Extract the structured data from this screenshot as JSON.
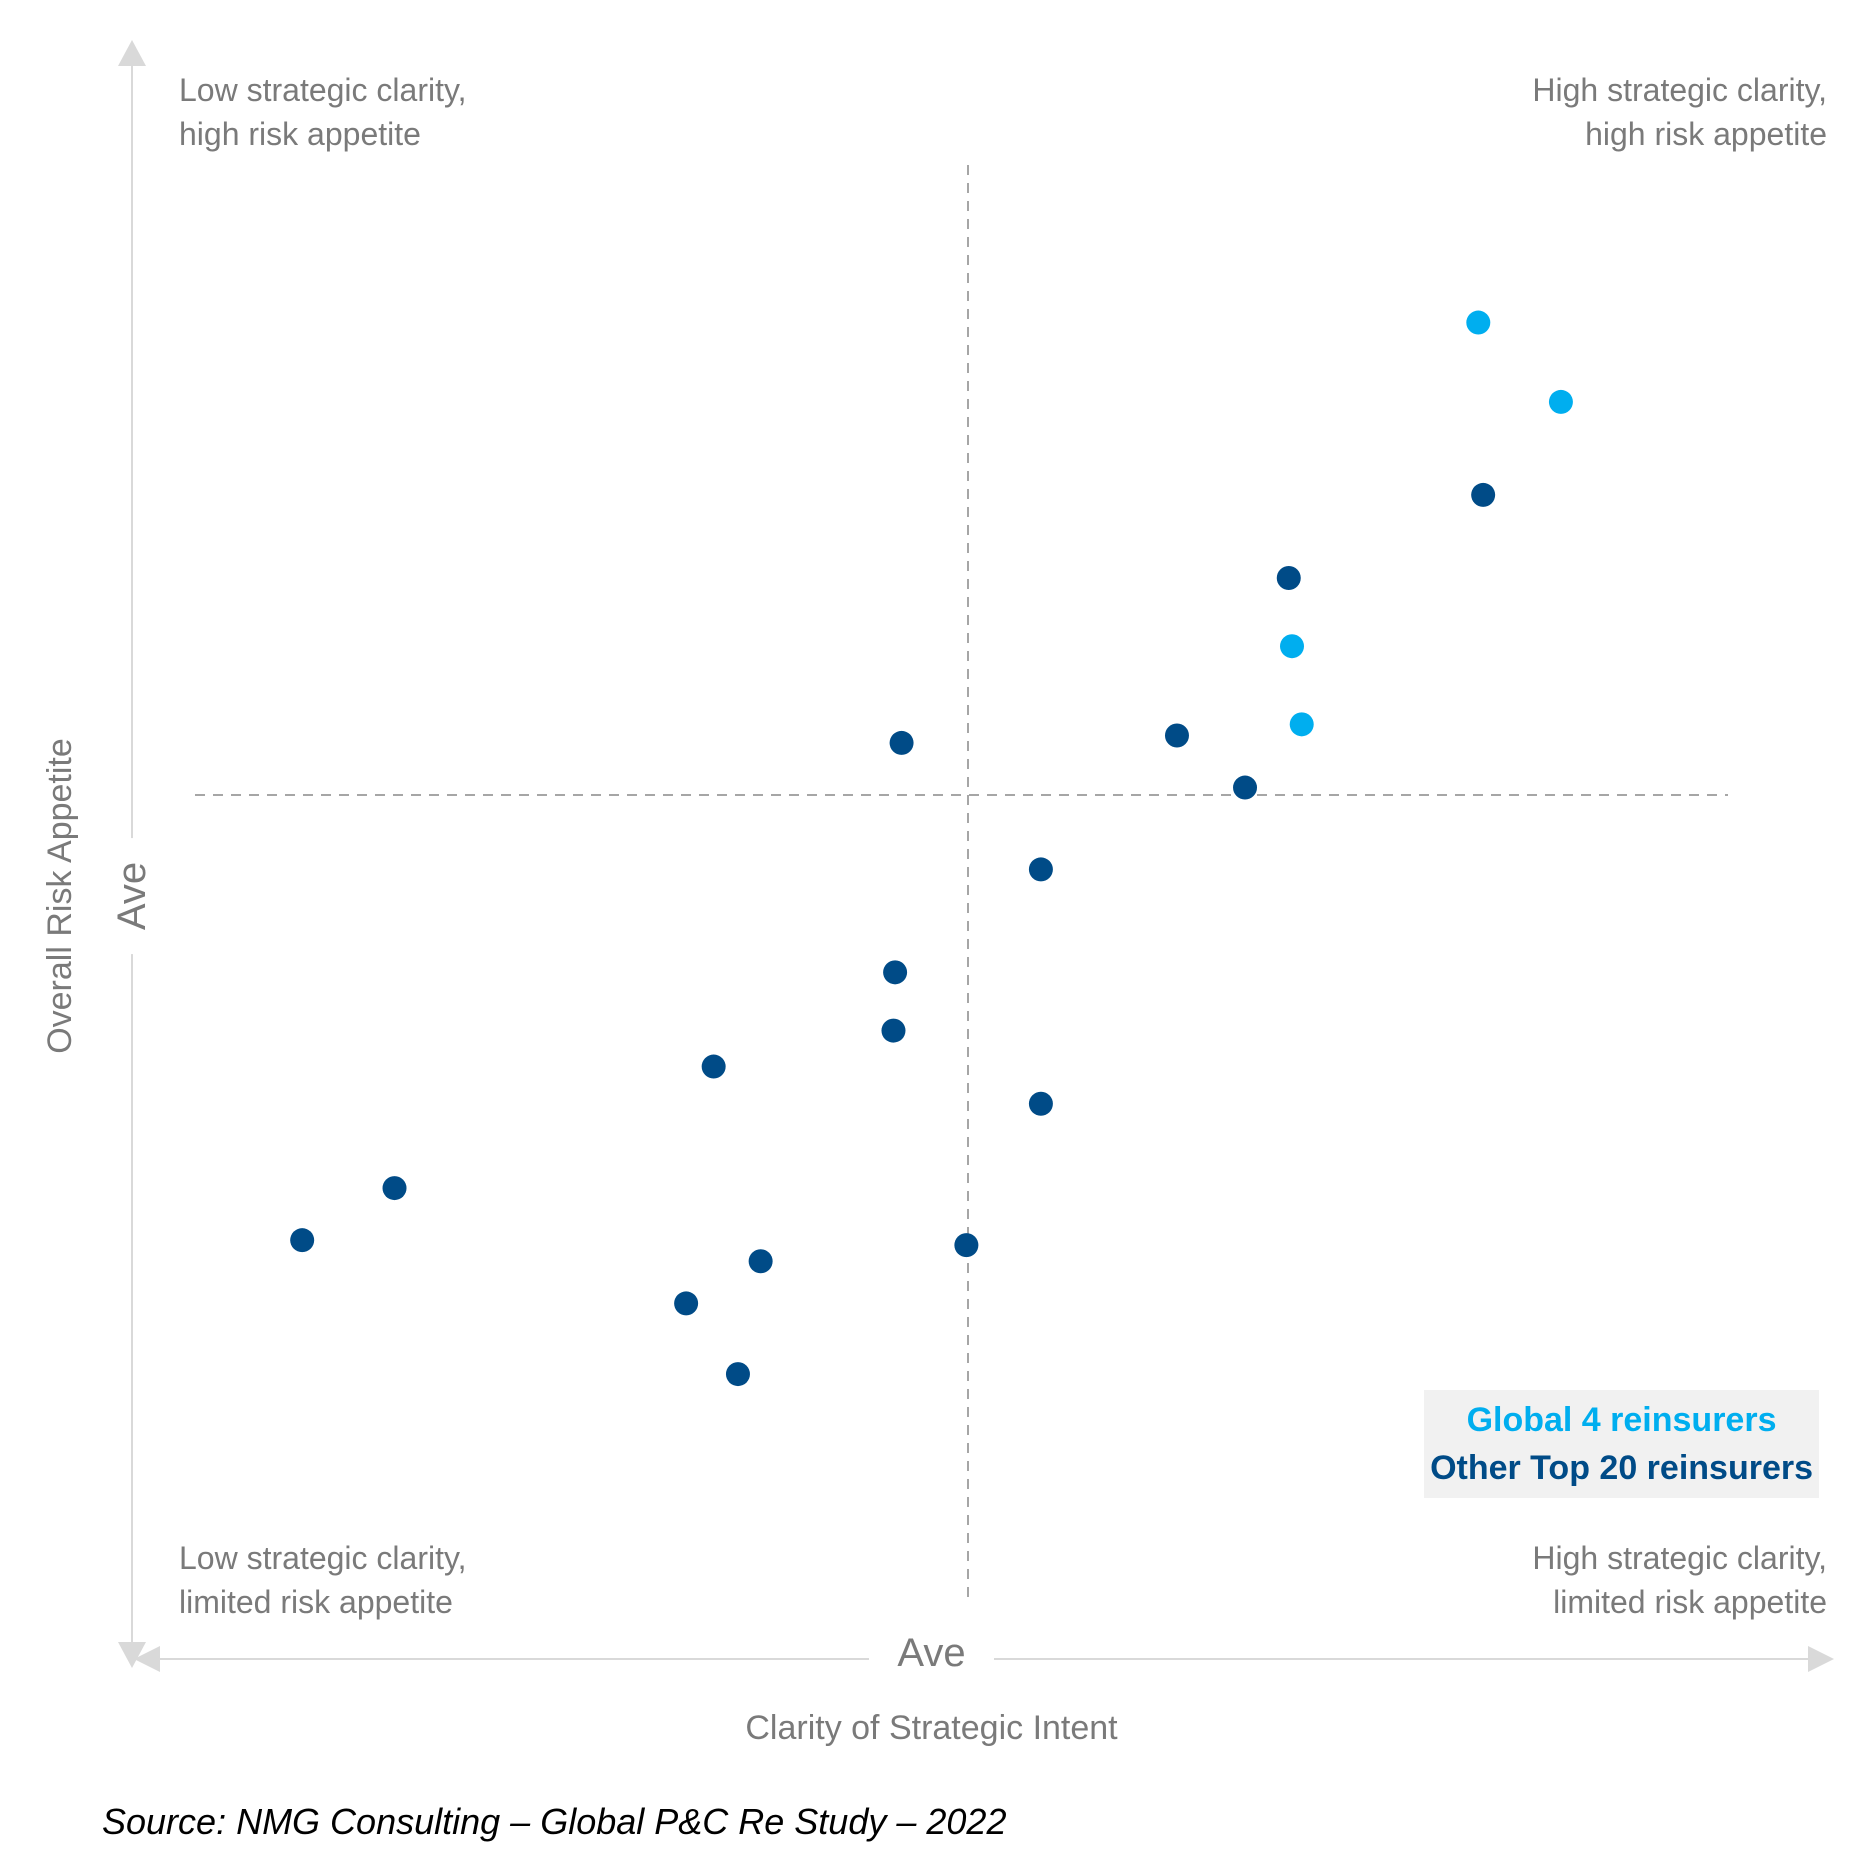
{
  "chart_data": {
    "type": "scatter",
    "xlabel": "Clarity of Strategic Intent",
    "ylabel": "Overall Risk Appetite",
    "xlim": [
      0,
      100
    ],
    "ylim": [
      0,
      100
    ],
    "average": {
      "x": 50,
      "y": 50,
      "x_label": "Ave",
      "y_label": "Ave"
    },
    "grid": false,
    "quadrants": {
      "top_left": "Low strategic clarity,\nhigh risk appetite",
      "top_right": "High strategic clarity,\nhigh risk appetite",
      "bottom_left": "Low strategic clarity,\nlimited risk appetite",
      "bottom_right": "High strategic clarity,\nlimited risk appetite"
    },
    "legend_position": "bottom-right",
    "series": [
      {
        "name": "Global 4 reinsurers",
        "color": "#00aeef",
        "points": [
          {
            "x": 81.5,
            "y": 88.1
          },
          {
            "x": 86.6,
            "y": 81.7
          },
          {
            "x": 70.0,
            "y": 62.0
          },
          {
            "x": 70.6,
            "y": 55.7
          }
        ]
      },
      {
        "name": "Other Top 20 reinsurers",
        "color": "#004b87",
        "points": [
          {
            "x": 81.8,
            "y": 74.2
          },
          {
            "x": 69.8,
            "y": 67.5
          },
          {
            "x": 62.9,
            "y": 54.8
          },
          {
            "x": 67.1,
            "y": 50.6
          },
          {
            "x": 45.9,
            "y": 54.2
          },
          {
            "x": 54.5,
            "y": 44.0
          },
          {
            "x": 45.5,
            "y": 35.7
          },
          {
            "x": 45.4,
            "y": 31.0
          },
          {
            "x": 34.3,
            "y": 28.1
          },
          {
            "x": 54.5,
            "y": 25.1
          },
          {
            "x": 14.6,
            "y": 18.3
          },
          {
            "x": 8.9,
            "y": 14.1
          },
          {
            "x": 37.2,
            "y": 12.4
          },
          {
            "x": 49.9,
            "y": 13.7
          },
          {
            "x": 32.6,
            "y": 9.0
          },
          {
            "x": 35.8,
            "y": 3.3
          }
        ]
      }
    ]
  },
  "source_note": "Source: NMG Consulting – Global P&C Re Study – 2022"
}
